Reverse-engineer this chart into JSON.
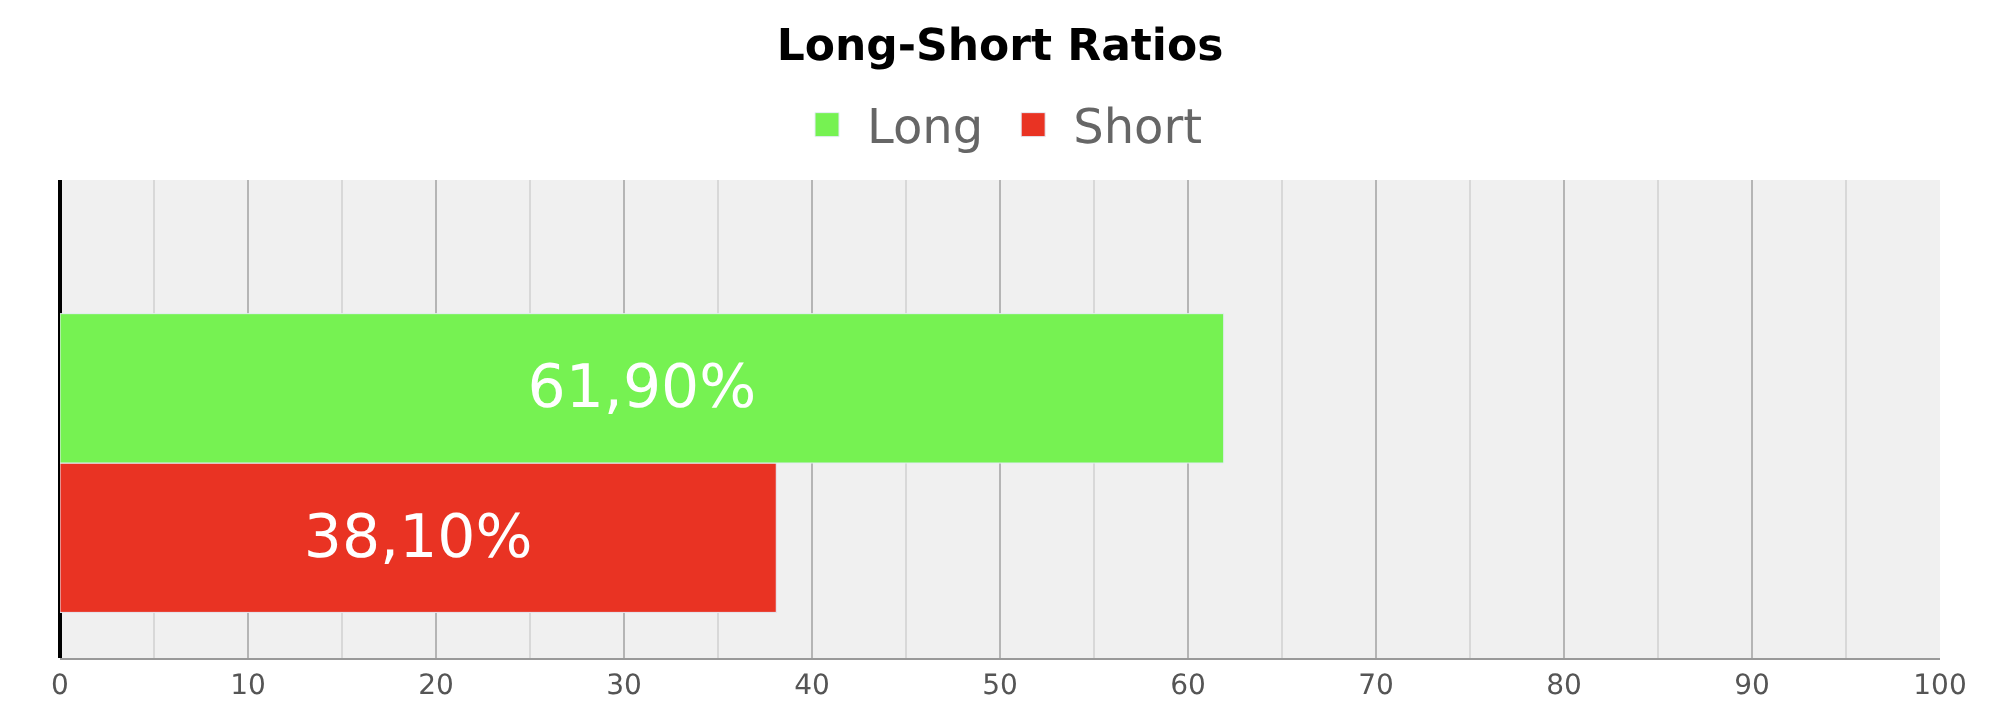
{
  "chart_data": {
    "type": "bar",
    "orientation": "horizontal",
    "title": "Long-Short Ratios",
    "categories": [
      null
    ],
    "series": [
      {
        "name": "Long",
        "color": "#76f252",
        "values": [
          61.9
        ],
        "value_labels": [
          "61,90%"
        ]
      },
      {
        "name": "Short",
        "color": "#e93323",
        "values": [
          38.1
        ],
        "value_labels": [
          "38,10%"
        ]
      }
    ],
    "xlim": [
      0,
      100
    ],
    "xticks": [
      0,
      10,
      20,
      30,
      40,
      50,
      60,
      70,
      80,
      90,
      100
    ],
    "grid": "x",
    "legend": "top"
  }
}
